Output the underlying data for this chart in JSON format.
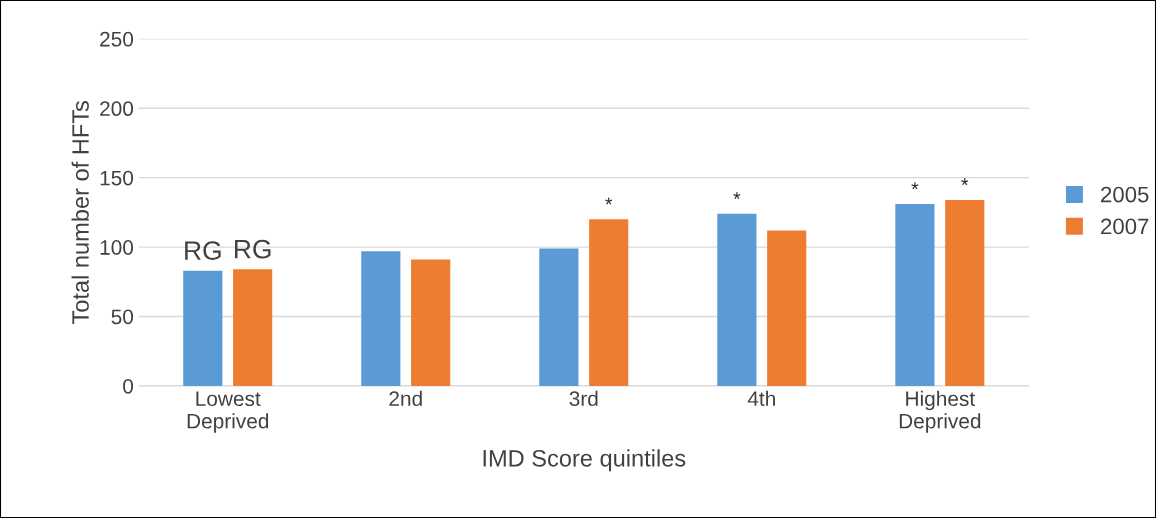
{
  "chart_data": {
    "type": "bar",
    "xlabel": "IMD Score quintiles",
    "ylabel": "Total number of HFTs",
    "categories": [
      "Lowest\nDeprived",
      "2nd",
      "3rd",
      "4th",
      "Highest\nDeprived"
    ],
    "series": [
      {
        "name": "2005",
        "color": "#5b9bd5",
        "values": [
          83,
          97,
          99,
          124,
          131
        ],
        "value_labels": [
          "RG",
          null,
          null,
          "*",
          "*"
        ]
      },
      {
        "name": "2007",
        "color": "#ed7d31",
        "values": [
          84,
          91,
          120,
          112,
          134
        ],
        "value_labels": [
          "RG",
          null,
          "*",
          null,
          "*"
        ]
      }
    ],
    "ylim": [
      0,
      250
    ],
    "yticks": [
      0,
      50,
      100,
      150,
      200,
      250
    ],
    "grid": "y",
    "legend": "right"
  }
}
